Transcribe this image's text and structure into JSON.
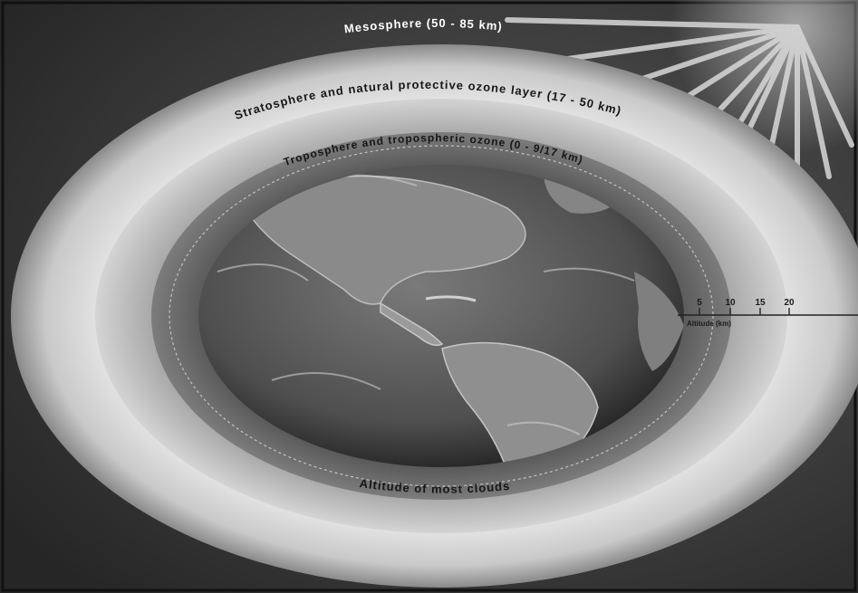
{
  "labels": {
    "mesosphere": "Mesosphere (50 - 85 km)",
    "stratosphere": "Stratosphere and natural protective ozone layer (17 - 50 km)",
    "troposphere": "Troposphere and tropospheric ozone (0 - 9/17 km)",
    "clouds": "Altitude of most clouds"
  },
  "altitude_scale": {
    "title": "Altitude (km)",
    "ticks": [
      "5",
      "10",
      "15",
      "20"
    ]
  },
  "colors": {
    "background": "#3a3a3a",
    "outer_glow": "#e8e8e8",
    "stratosphere_band": "#cfcfcf",
    "troposphere_band": "#6b6b6b",
    "earth_ocean": "#5a5a5a",
    "earth_land": "#8e8e8e"
  }
}
